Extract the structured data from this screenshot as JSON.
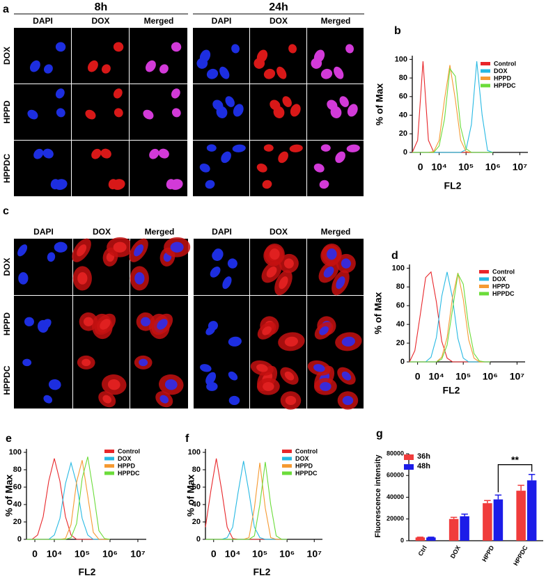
{
  "figure": {
    "panel_a": {
      "label": "a",
      "times": [
        "8h",
        "24h"
      ],
      "columns": [
        "DAPI",
        "DOX",
        "Merged",
        "DAPI",
        "DOX",
        "Merged"
      ],
      "rows": [
        "DOX",
        "HPPD",
        "HPPDC"
      ]
    },
    "panel_c": {
      "label": "c",
      "columns": [
        "DAPI",
        "DOX",
        "Merged",
        "DAPI",
        "DOX",
        "Merged"
      ],
      "rows": [
        "DOX",
        "HPPD",
        "HPPDC"
      ]
    }
  },
  "chart_data": [
    {
      "type": "line",
      "label": "b",
      "xlabel": "FL2",
      "ylabel": "% of Max",
      "log_scale_x": true,
      "legend": "upper right",
      "x": [
        1000,
        1585,
        2512,
        3981,
        6310,
        10000,
        15849,
        25119,
        39811,
        63096,
        100000,
        158489,
        251189,
        398107,
        630957,
        1000000
      ],
      "xlim": [
        1000,
        20000000
      ],
      "xticks": [
        {
          "value": 2000,
          "label": "0"
        },
        {
          "value": 10000,
          "label": "10⁴"
        },
        {
          "value": 100000,
          "label": "10⁵"
        },
        {
          "value": 1000000,
          "label": "10⁶"
        },
        {
          "value": 10000000,
          "label": "10⁷"
        }
      ],
      "ylim": [
        0,
        104
      ],
      "yticks": [
        0,
        20,
        40,
        60,
        80,
        100
      ],
      "series": [
        {
          "name": "Control",
          "color": "#e8262a",
          "values": [
            0,
            13,
            98,
            13,
            0,
            0,
            0,
            0,
            0,
            0,
            0,
            0,
            0,
            0,
            0,
            0
          ]
        },
        {
          "name": "DOX",
          "color": "#27b9e3",
          "values": [
            0,
            0,
            0,
            0,
            0,
            0,
            0,
            0,
            0,
            0,
            3,
            30,
            98,
            40,
            2,
            0
          ]
        },
        {
          "name": "HPPD",
          "color": "#f59a32",
          "values": [
            0,
            0,
            0,
            0,
            1,
            13,
            57,
            94,
            57,
            13,
            1,
            0,
            0,
            0,
            0,
            0
          ]
        },
        {
          "name": "HPPDC",
          "color": "#6bdc3a",
          "values": [
            0,
            0,
            0,
            0,
            0,
            7,
            36,
            90,
            82,
            27,
            4,
            0,
            0,
            0,
            0,
            0
          ]
        }
      ]
    },
    {
      "type": "line",
      "label": "d",
      "xlabel": "FL2",
      "ylabel": "% of Max",
      "log_scale_x": true,
      "legend": "upper right",
      "x": [
        1000,
        1585,
        2512,
        3981,
        6310,
        10000,
        15849,
        25119,
        39811,
        63096,
        100000,
        158489,
        251189,
        398107,
        630957,
        1000000
      ],
      "xlim": [
        1000,
        20000000
      ],
      "xticks": [
        {
          "value": 2000,
          "label": "0"
        },
        {
          "value": 10000,
          "label": "10⁴"
        },
        {
          "value": 100000,
          "label": "10⁵"
        },
        {
          "value": 1000000,
          "label": "10⁶"
        },
        {
          "value": 10000000,
          "label": "10⁷"
        }
      ],
      "ylim": [
        0,
        104
      ],
      "yticks": [
        0,
        20,
        40,
        60,
        80,
        100
      ],
      "series": [
        {
          "name": "Control",
          "color": "#e8262a",
          "values": [
            0,
            12,
            50,
            90,
            96,
            64,
            22,
            4,
            0,
            0,
            0,
            0,
            0,
            0,
            0,
            0
          ]
        },
        {
          "name": "DOX",
          "color": "#27b9e3",
          "values": [
            0,
            0,
            0,
            0,
            5,
            26,
            70,
            96,
            68,
            25,
            4,
            0,
            0,
            0,
            0,
            0
          ]
        },
        {
          "name": "HPPD",
          "color": "#f59a32",
          "values": [
            0,
            0,
            0,
            0,
            0,
            0,
            5,
            26,
            69,
            95,
            67,
            24,
            4,
            0,
            0,
            0
          ]
        },
        {
          "name": "HPPDC",
          "color": "#6bdc3a",
          "values": [
            0,
            0,
            0,
            0,
            0,
            0,
            3,
            18,
            56,
            94,
            83,
            38,
            9,
            1,
            0,
            0
          ]
        }
      ]
    },
    {
      "type": "line",
      "label": "e",
      "xlabel": "FL2",
      "ylabel": "% of Max",
      "log_scale_x": true,
      "legend": "upper right",
      "x": [
        1000,
        1585,
        2512,
        3981,
        6310,
        10000,
        15849,
        25119,
        39811,
        63096,
        100000,
        158489,
        251189,
        398107,
        630957,
        1000000
      ],
      "xlim": [
        1000,
        20000000
      ],
      "xticks": [
        {
          "value": 2000,
          "label": "0"
        },
        {
          "value": 10000,
          "label": "10⁴"
        },
        {
          "value": 100000,
          "label": "10⁵"
        },
        {
          "value": 1000000,
          "label": "10⁶"
        },
        {
          "value": 10000000,
          "label": "10⁷"
        }
      ],
      "ylim": [
        0,
        104
      ],
      "yticks": [
        0,
        20,
        40,
        60,
        80,
        100
      ],
      "series": [
        {
          "name": "Control",
          "color": "#e8262a",
          "values": [
            0,
            0,
            5,
            26,
            67,
            93,
            67,
            26,
            5,
            0,
            0,
            0,
            0,
            0,
            0,
            0
          ]
        },
        {
          "name": "DOX",
          "color": "#27b9e3",
          "values": [
            0,
            0,
            0,
            0,
            0,
            5,
            24,
            64,
            88,
            64,
            24,
            5,
            0,
            0,
            0,
            0
          ]
        },
        {
          "name": "HPPD",
          "color": "#f59a32",
          "values": [
            0,
            0,
            0,
            0,
            0,
            0,
            0,
            1,
            17,
            66,
            91,
            50,
            8,
            0,
            0,
            0
          ]
        },
        {
          "name": "HPPDC",
          "color": "#6bdc3a",
          "values": [
            0,
            0,
            0,
            0,
            0,
            0,
            0,
            0,
            2,
            18,
            70,
            95,
            55,
            10,
            1,
            0
          ]
        }
      ]
    },
    {
      "type": "line",
      "label": "f",
      "xlabel": "FL2",
      "ylabel": "% of Max",
      "log_scale_x": true,
      "legend": "upper right",
      "x": [
        1000,
        1585,
        2512,
        3981,
        6310,
        10000,
        15849,
        25119,
        39811,
        63096,
        100000,
        158489,
        251189,
        398107,
        630957,
        1000000
      ],
      "xlim": [
        1000,
        20000000
      ],
      "xticks": [
        {
          "value": 2000,
          "label": "0"
        },
        {
          "value": 10000,
          "label": "10⁴"
        },
        {
          "value": 100000,
          "label": "10⁵"
        },
        {
          "value": 1000000,
          "label": "10⁶"
        },
        {
          "value": 10000000,
          "label": "10⁷"
        }
      ],
      "ylim": [
        0,
        104
      ],
      "yticks": [
        0,
        20,
        40,
        60,
        80,
        100
      ],
      "series": [
        {
          "name": "Control",
          "color": "#e8262a",
          "values": [
            14,
            56,
            93,
            56,
            14,
            1,
            0,
            0,
            0,
            0,
            0,
            0,
            0,
            0,
            0,
            0
          ]
        },
        {
          "name": "DOX",
          "color": "#27b9e3",
          "values": [
            0,
            0,
            0,
            0,
            2,
            14,
            54,
            90,
            54,
            14,
            2,
            0,
            0,
            0,
            0,
            0
          ]
        },
        {
          "name": "HPPD",
          "color": "#f59a32",
          "values": [
            0,
            0,
            0,
            0,
            0,
            0,
            0,
            0,
            2,
            36,
            88,
            36,
            2,
            0,
            0,
            0
          ]
        },
        {
          "name": "HPPDC",
          "color": "#6bdc3a",
          "values": [
            0,
            0,
            0,
            0,
            0,
            0,
            0,
            0,
            0,
            4,
            40,
            89,
            40,
            4,
            0,
            0
          ]
        }
      ]
    },
    {
      "type": "bar",
      "label": "g",
      "ylabel": "Fluorescence intensity",
      "legend": "upper left",
      "annotation": "**",
      "categories": [
        "Ctrl",
        "DOX",
        "HPPD",
        "HPPDC"
      ],
      "ylim": [
        0,
        80000
      ],
      "yticks": [
        0,
        20000,
        40000,
        60000,
        80000
      ],
      "series": [
        {
          "name": "36h",
          "color": "#f03c3c",
          "values": [
            3000,
            20000,
            34500,
            46000
          ],
          "errors": [
            300,
            1500,
            2500,
            5000
          ]
        },
        {
          "name": "48h",
          "color": "#1c1ce8",
          "values": [
            3000,
            22500,
            38000,
            55500
          ],
          "errors": [
            300,
            2000,
            4000,
            5500
          ]
        }
      ]
    }
  ]
}
